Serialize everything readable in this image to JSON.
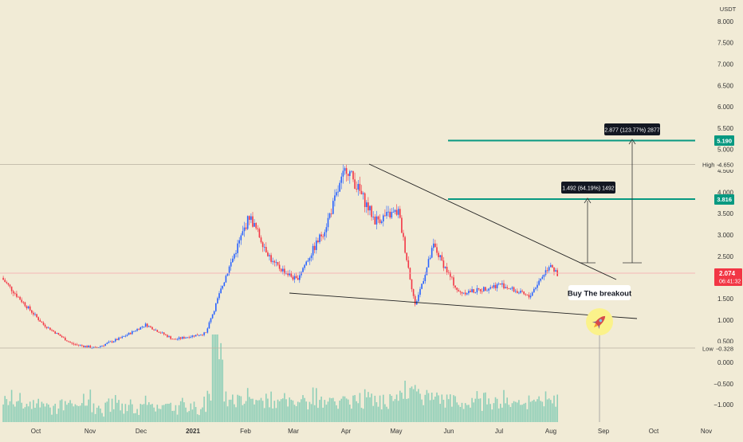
{
  "colors": {
    "background": "#f1ebd6",
    "up": "#2962ff",
    "down": "#f23645",
    "volume": "#8fcfb8",
    "target_line": "#089981",
    "current_price": "#f23645",
    "pattern_line": "#222222"
  },
  "chart_data": {
    "type": "candlestick",
    "currency": "USDT",
    "price_axis_ticks": [
      "8.000",
      "7.500",
      "7.000",
      "6.500",
      "6.000",
      "5.500",
      "5.000",
      "4.500",
      "4.000",
      "3.500",
      "3.000",
      "2.500",
      "1.500",
      "1.000",
      "0.500",
      "0.000",
      "−0.500",
      "−1.000"
    ],
    "time_axis_ticks": [
      "Oct",
      "Nov",
      "Dec",
      "2021",
      "Feb",
      "Mar",
      "Apr",
      "May",
      "Jun",
      "Jul",
      "Aug",
      "Sep",
      "Oct",
      "Nov"
    ],
    "last_price": "2.074",
    "countdown": "06:41:32",
    "high_label": "High",
    "high_value": "4.650",
    "low_label": "Low",
    "low_value": "0.328",
    "targets": [
      {
        "price": "3.816",
        "measure_label": "1.492 (64.19%) 1492"
      },
      {
        "price": "5.190",
        "measure_label": "2.877 (123.77%) 2877"
      }
    ],
    "annotation": "Buy The breakout",
    "annotation_icon": "rocket-icon",
    "price_series": [
      {
        "t": "2020-09-20",
        "close": 2.05
      },
      {
        "t": "2020-10-01",
        "close": 1.55
      },
      {
        "t": "2020-10-15",
        "close": 0.95
      },
      {
        "t": "2020-11-01",
        "close": 0.5
      },
      {
        "t": "2020-11-15",
        "close": 0.4
      },
      {
        "t": "2020-12-01",
        "close": 0.65
      },
      {
        "t": "2020-12-15",
        "close": 0.95
      },
      {
        "t": "2021-01-01",
        "close": 0.6
      },
      {
        "t": "2021-01-20",
        "close": 0.75
      },
      {
        "t": "2021-02-01",
        "close": 2.1
      },
      {
        "t": "2021-02-15",
        "close": 3.5
      },
      {
        "t": "2021-03-01",
        "close": 2.4
      },
      {
        "t": "2021-03-15",
        "close": 2.0
      },
      {
        "t": "2021-04-01",
        "close": 3.2
      },
      {
        "t": "2021-04-14",
        "close": 4.65
      },
      {
        "t": "2021-05-01",
        "close": 3.4
      },
      {
        "t": "2021-05-15",
        "close": 3.6
      },
      {
        "t": "2021-05-25",
        "close": 1.4
      },
      {
        "t": "2021-06-05",
        "close": 2.8
      },
      {
        "t": "2021-06-20",
        "close": 1.7
      },
      {
        "t": "2021-07-01",
        "close": 1.75
      },
      {
        "t": "2021-07-15",
        "close": 1.9
      },
      {
        "t": "2021-08-01",
        "close": 1.6
      },
      {
        "t": "2021-08-14",
        "close": 2.4
      },
      {
        "t": "2021-08-18",
        "close": 2.074
      }
    ]
  }
}
